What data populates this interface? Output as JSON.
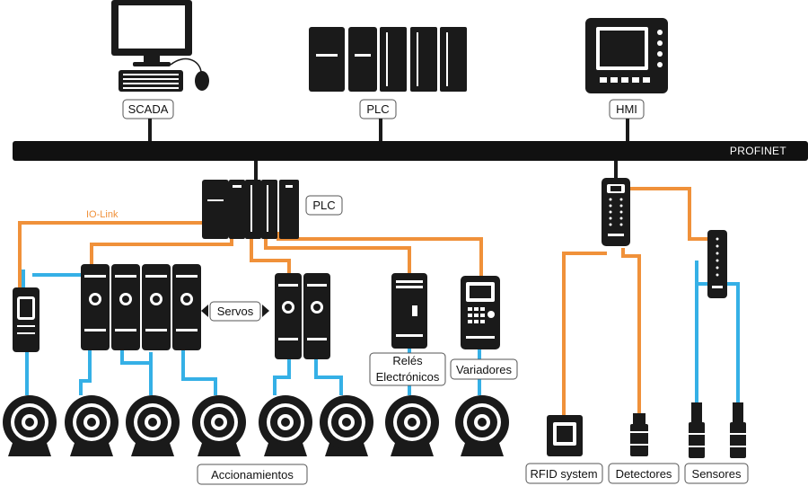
{
  "colors": {
    "device": "#1a1a1a",
    "bus": "#111111",
    "io_link": "#f0913a",
    "sensor_cable": "#35b0e6"
  },
  "network": {
    "bus_label": "PROFINET",
    "io_link_label": "IO-Link"
  },
  "labels": {
    "scada": "SCADA",
    "plc_top": "PLC",
    "hmi": "HMI",
    "plc_mid": "PLC",
    "servos": "Servos",
    "reles_line1": "Relés",
    "reles_line2": "Electrónicos",
    "variadores": "Variadores",
    "accionamientos": "Accionamientos",
    "rfid": "RFID system",
    "detectores": "Detectores",
    "sensores": "Sensores"
  },
  "icons": [
    "computer-monitor-icon",
    "keyboard-icon",
    "mouse-icon",
    "plc-rack-icon",
    "hmi-panel-icon",
    "io-link-master-icon",
    "servo-drive-icon",
    "electronic-relay-icon",
    "frequency-drive-icon",
    "motor-icon",
    "rfid-reader-icon",
    "proximity-sensor-icon"
  ]
}
